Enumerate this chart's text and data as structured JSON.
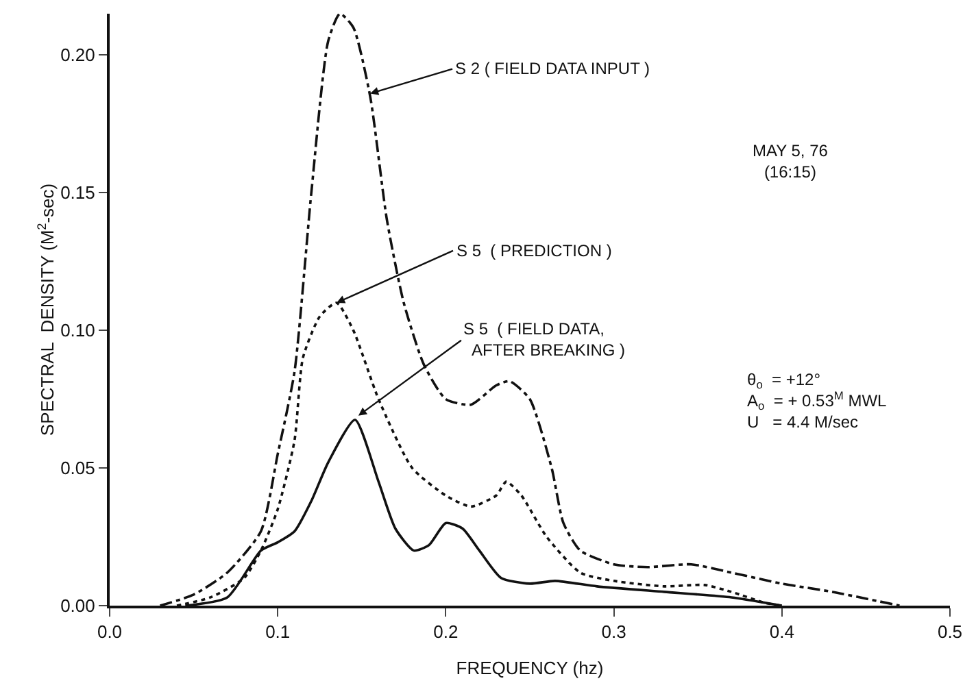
{
  "chart_data": {
    "type": "line",
    "xlabel": "FREQUENCY (hz)",
    "ylabel": "SPECTRAL  DENSITY (M$^{2}$-sec)",
    "xlim": [
      0,
      0.5
    ],
    "ylim": [
      0,
      0.215
    ],
    "xticks": [
      {
        "value": 0,
        "label": "0.0"
      },
      {
        "value": 0.1,
        "label": "0.1"
      },
      {
        "value": 0.2,
        "label": "0.2"
      },
      {
        "value": 0.3,
        "label": "0.3"
      },
      {
        "value": 0.4,
        "label": "0.4"
      },
      {
        "value": 0.5,
        "label": "0.5"
      }
    ],
    "yticks": [
      {
        "value": 0,
        "label": "0.00"
      },
      {
        "value": 0.05,
        "label": "0.05"
      },
      {
        "value": 0.1,
        "label": "0.10"
      },
      {
        "value": 0.15,
        "label": "0.15"
      },
      {
        "value": 0.2,
        "label": "0.20"
      }
    ],
    "grid": false,
    "marker": "none",
    "series": [
      {
        "color": "#111111",
        "line_style": "dashed",
        "x": [
          0.03,
          0.05,
          0.07,
          0.09,
          0.1,
          0.11,
          0.12,
          0.13,
          0.137,
          0.145,
          0.155,
          0.165,
          0.175,
          0.187,
          0.2,
          0.215,
          0.23,
          0.238,
          0.25,
          0.263,
          0.27,
          0.28,
          0.3,
          0.32,
          0.346,
          0.37,
          0.4,
          0.43,
          0.47
        ],
        "values": [
          0,
          0.004,
          0.012,
          0.027,
          0.055,
          0.085,
          0.15,
          0.205,
          0.215,
          0.21,
          0.185,
          0.14,
          0.11,
          0.0875,
          0.075,
          0.073,
          0.08,
          0.0815,
          0.075,
          0.05,
          0.03,
          0.02,
          0.015,
          0.014,
          0.015,
          0.012,
          0.008,
          0.005,
          0
        ]
      },
      {
        "color": "#111111",
        "line_style": "dotted",
        "x": [
          0.04,
          0.06,
          0.08,
          0.09,
          0.1,
          0.11,
          0.115,
          0.125,
          0.135,
          0.145,
          0.16,
          0.18,
          0.2,
          0.215,
          0.23,
          0.236,
          0.245,
          0.26,
          0.28,
          0.3,
          0.33,
          0.354,
          0.37,
          0.39,
          0.4
        ],
        "values": [
          0,
          0.003,
          0.01,
          0.02,
          0.035,
          0.06,
          0.09,
          0.105,
          0.11,
          0.1,
          0.075,
          0.05,
          0.04,
          0.036,
          0.04,
          0.045,
          0.04,
          0.025,
          0.012,
          0.009,
          0.007,
          0.0075,
          0.005,
          0.001,
          0
        ]
      },
      {
        "color": "#111111",
        "line_style": "solid",
        "x": [
          0.045,
          0.07,
          0.09,
          0.1,
          0.11,
          0.12,
          0.13,
          0.146,
          0.16,
          0.17,
          0.181,
          0.19,
          0.2,
          0.21,
          0.22,
          0.233,
          0.25,
          0.265,
          0.29,
          0.33,
          0.37,
          0.4
        ],
        "values": [
          0,
          0.003,
          0.02,
          0.023,
          0.027,
          0.038,
          0.052,
          0.0675,
          0.045,
          0.028,
          0.02,
          0.022,
          0.03,
          0.028,
          0.02,
          0.01,
          0.008,
          0.009,
          0.007,
          0.005,
          0.003,
          0
        ]
      }
    ],
    "annotations": [
      {
        "text": "S 2 ( FIELD DATA INPUT )",
        "x": 0.155,
        "y": 0.186
      },
      {
        "text": "S 5  ( PREDICTION )",
        "x": 0.135,
        "y": 0.11
      },
      {
        "text": "S 5  ( FIELD DATA,\n  AFTER BREAKING )",
        "x": 0.148,
        "y": 0.069
      },
      "MAY 5, 76\n(16:15)",
      "θ$_{o}$  = +12°\nA$_{o}$  = + 0.53$^{M}$ MWL\nU   = 4.4 M/sec"
    ]
  }
}
